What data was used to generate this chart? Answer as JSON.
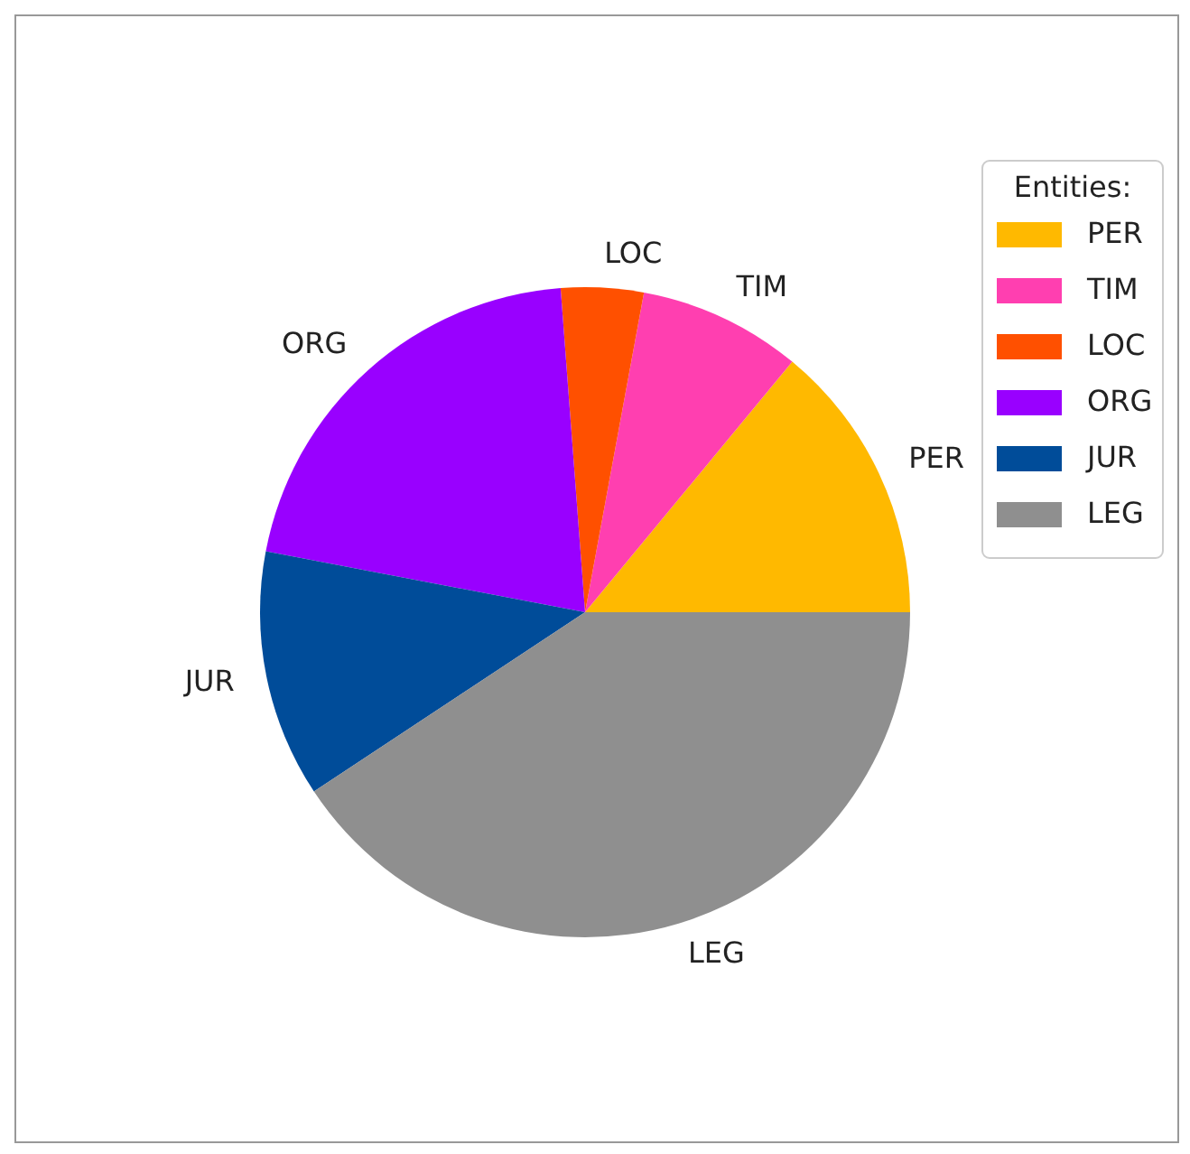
{
  "chart_data": {
    "type": "pie",
    "categories": [
      "PER",
      "TIM",
      "LOC",
      "ORG",
      "JUR",
      "LEG"
    ],
    "values": [
      14,
      8.1,
      4.1,
      20.8,
      12.3,
      40.7
    ],
    "colors": [
      "#ffb900",
      "#ff3fb0",
      "#ff5000",
      "#9900ff",
      "#004c99",
      "#8f8f8f"
    ],
    "legend_title": "Entities:",
    "legend": "top right"
  }
}
